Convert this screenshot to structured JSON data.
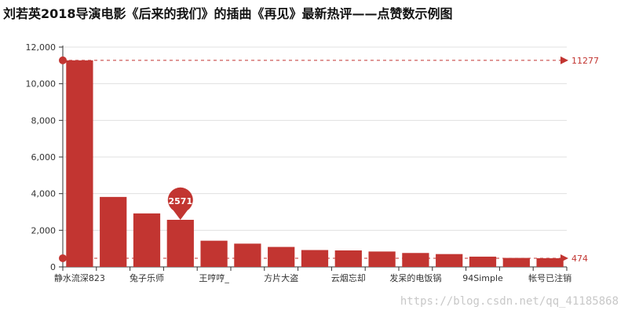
{
  "title": "刘若英2018导演电影《后来的我们》的插曲《再见》最新热评——点赞数示例图",
  "watermark": "https://blog.csdn.net/qq_41185868",
  "colors": {
    "bar": "#c23531",
    "grid": "#e0e0e0",
    "axis": "#333333"
  },
  "chart_data": {
    "type": "bar",
    "categories": [
      "静水流深823",
      "",
      "兔子乐师",
      "",
      "王哼哼_",
      "",
      "方片大盗",
      "",
      "云烟忘却",
      "",
      "发呆的电饭锅",
      "",
      "94Simple",
      "",
      "帐号已注销"
    ],
    "values": [
      11277,
      3820,
      2920,
      2571,
      1430,
      1270,
      1090,
      920,
      900,
      840,
      760,
      700,
      560,
      490,
      474
    ],
    "ylim": [
      0,
      12000
    ],
    "yticks": [
      0,
      2000,
      4000,
      6000,
      8000,
      10000,
      12000
    ],
    "ytick_labels": [
      "0",
      "2,000",
      "4,000",
      "6,000",
      "8,000",
      "10,000",
      "12,000"
    ],
    "grid": true,
    "mark_point": {
      "category_index": 3,
      "label": "2571"
    },
    "mark_lines": [
      {
        "type": "max",
        "label": "11277",
        "value": 11277
      },
      {
        "type": "min",
        "label": "474",
        "value": 474
      }
    ]
  }
}
